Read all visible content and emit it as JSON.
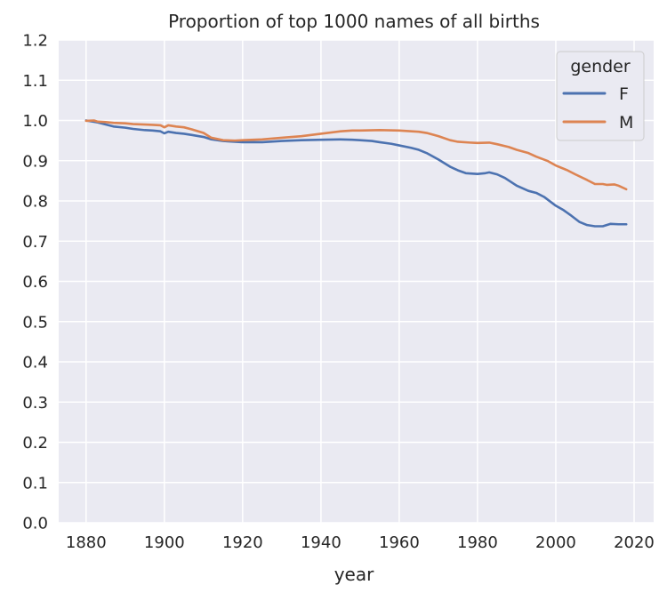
{
  "chart_data": {
    "type": "line",
    "title": "Proportion of top 1000 names of all births",
    "xlabel": "year",
    "ylabel": "",
    "xlim": [
      1873,
      2025
    ],
    "ylim": [
      0.0,
      1.2
    ],
    "x_ticks": [
      1880,
      1900,
      1920,
      1940,
      1960,
      1980,
      2000,
      2020
    ],
    "y_ticks": [
      0.0,
      0.1,
      0.2,
      0.3,
      0.4,
      0.5,
      0.6,
      0.7,
      0.8,
      0.9,
      1.0,
      1.1,
      1.2
    ],
    "grid": true,
    "legend": {
      "title": "gender",
      "position": "top-right"
    },
    "series": [
      {
        "name": "F",
        "color": "#4c72b0",
        "x": [
          1880,
          1883,
          1885,
          1887,
          1890,
          1892,
          1895,
          1897,
          1899,
          1900,
          1901,
          1903,
          1905,
          1907,
          1910,
          1912,
          1915,
          1918,
          1920,
          1925,
          1930,
          1935,
          1940,
          1945,
          1948,
          1950,
          1953,
          1955,
          1958,
          1960,
          1963,
          1965,
          1967,
          1970,
          1973,
          1975,
          1977,
          1980,
          1982,
          1983,
          1985,
          1987,
          1990,
          1993,
          1995,
          1997,
          2000,
          2002,
          2004,
          2006,
          2008,
          2010,
          2012,
          2014,
          2016,
          2018
        ],
        "y": [
          1.0,
          0.995,
          0.99,
          0.985,
          0.982,
          0.979,
          0.976,
          0.975,
          0.973,
          0.968,
          0.972,
          0.969,
          0.967,
          0.964,
          0.959,
          0.953,
          0.949,
          0.947,
          0.946,
          0.946,
          0.949,
          0.951,
          0.952,
          0.953,
          0.952,
          0.951,
          0.949,
          0.946,
          0.942,
          0.938,
          0.932,
          0.927,
          0.919,
          0.903,
          0.885,
          0.876,
          0.869,
          0.867,
          0.869,
          0.871,
          0.866,
          0.857,
          0.838,
          0.825,
          0.82,
          0.81,
          0.788,
          0.777,
          0.763,
          0.748,
          0.74,
          0.737,
          0.737,
          0.743,
          0.742,
          0.742
        ]
      },
      {
        "name": "M",
        "color": "#dd8452",
        "x": [
          1880,
          1882,
          1883,
          1885,
          1887,
          1890,
          1892,
          1895,
          1897,
          1899,
          1900,
          1901,
          1903,
          1905,
          1907,
          1910,
          1912,
          1915,
          1918,
          1920,
          1925,
          1930,
          1935,
          1940,
          1945,
          1948,
          1950,
          1955,
          1960,
          1965,
          1967,
          1970,
          1973,
          1975,
          1978,
          1980,
          1983,
          1985,
          1988,
          1990,
          1993,
          1995,
          1998,
          2000,
          2003,
          2005,
          2008,
          2010,
          2012,
          2013,
          2015,
          2016,
          2018
        ],
        "y": [
          0.999,
          1.0,
          0.997,
          0.996,
          0.994,
          0.993,
          0.991,
          0.99,
          0.989,
          0.988,
          0.983,
          0.988,
          0.985,
          0.983,
          0.978,
          0.969,
          0.957,
          0.951,
          0.95,
          0.951,
          0.953,
          0.957,
          0.961,
          0.967,
          0.973,
          0.975,
          0.975,
          0.976,
          0.975,
          0.972,
          0.969,
          0.961,
          0.951,
          0.947,
          0.945,
          0.944,
          0.945,
          0.941,
          0.934,
          0.927,
          0.919,
          0.91,
          0.899,
          0.888,
          0.876,
          0.866,
          0.852,
          0.842,
          0.842,
          0.84,
          0.841,
          0.838,
          0.829
        ]
      }
    ]
  }
}
